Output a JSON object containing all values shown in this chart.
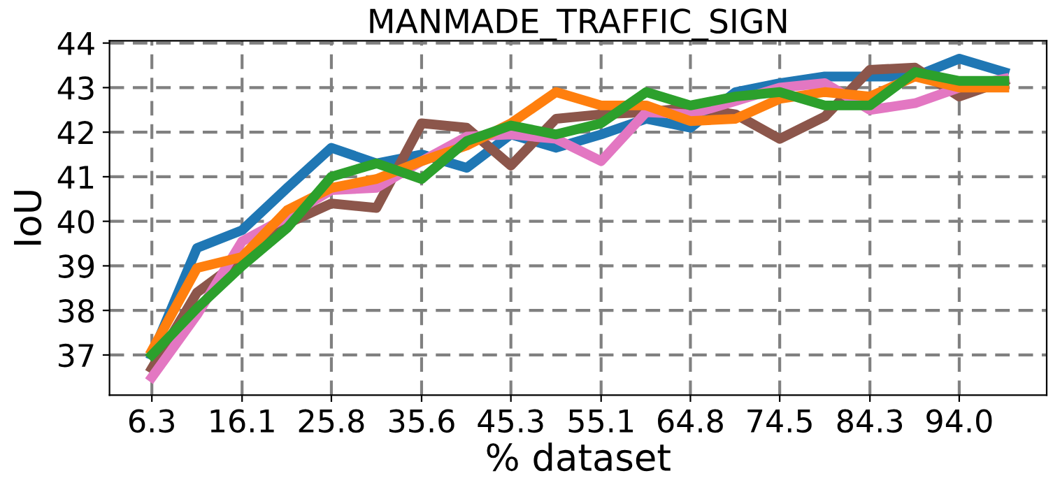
{
  "chart_data": {
    "type": "line",
    "title": "MANMADE_TRAFFIC_SIGN",
    "xlabel": "% dataset",
    "ylabel": "IoU",
    "x": [
      6.3,
      11.2,
      16.1,
      21.0,
      25.8,
      30.7,
      35.6,
      40.5,
      45.3,
      50.2,
      55.1,
      60.0,
      64.8,
      69.7,
      74.5,
      79.4,
      84.3,
      89.2,
      94.0,
      98.9
    ],
    "series": [
      {
        "color": "#1f77b4",
        "values": [
          37.0,
          39.4,
          39.8,
          40.75,
          41.65,
          41.3,
          41.5,
          41.2,
          41.95,
          41.65,
          41.95,
          42.3,
          42.1,
          42.9,
          43.1,
          43.25,
          43.25,
          43.25,
          43.65,
          43.35
        ]
      },
      {
        "color": "#8c564b",
        "values": [
          36.7,
          38.4,
          39.15,
          39.95,
          40.4,
          40.3,
          42.2,
          42.1,
          41.25,
          42.3,
          42.4,
          42.45,
          42.55,
          42.4,
          41.85,
          42.35,
          43.4,
          43.45,
          42.8,
          43.15
        ]
      },
      {
        "color": "#e377c2",
        "values": [
          36.5,
          37.9,
          39.55,
          40.1,
          40.7,
          40.75,
          41.35,
          41.9,
          41.95,
          41.85,
          41.35,
          42.45,
          42.4,
          42.7,
          43.0,
          43.1,
          42.5,
          42.65,
          43.0,
          43.2
        ]
      },
      {
        "color": "#ff7f0e",
        "values": [
          37.1,
          38.95,
          39.2,
          40.25,
          40.75,
          40.95,
          41.35,
          41.7,
          42.2,
          42.9,
          42.6,
          42.6,
          42.25,
          42.3,
          42.75,
          42.9,
          42.8,
          43.25,
          43.0,
          43.0
        ]
      },
      {
        "color": "#2ca02c",
        "values": [
          37.0,
          38.05,
          39.0,
          39.85,
          41.0,
          41.3,
          40.95,
          41.8,
          42.15,
          41.95,
          42.2,
          42.9,
          42.6,
          42.8,
          42.9,
          42.6,
          42.6,
          43.35,
          43.15,
          43.15
        ]
      }
    ],
    "xlim": [
      1.7,
      103.5
    ],
    "ylim": [
      36.1,
      44.05
    ],
    "xticks": [
      6.3,
      16.1,
      25.8,
      35.6,
      45.3,
      55.1,
      64.8,
      74.5,
      84.3,
      {
        "value": 94.0,
        "label": "94.0"
      }
    ],
    "yticks": [
      37,
      38,
      39,
      40,
      41,
      42,
      43,
      44
    ],
    "grid": true,
    "line_style": "solid",
    "marker": "none"
  }
}
